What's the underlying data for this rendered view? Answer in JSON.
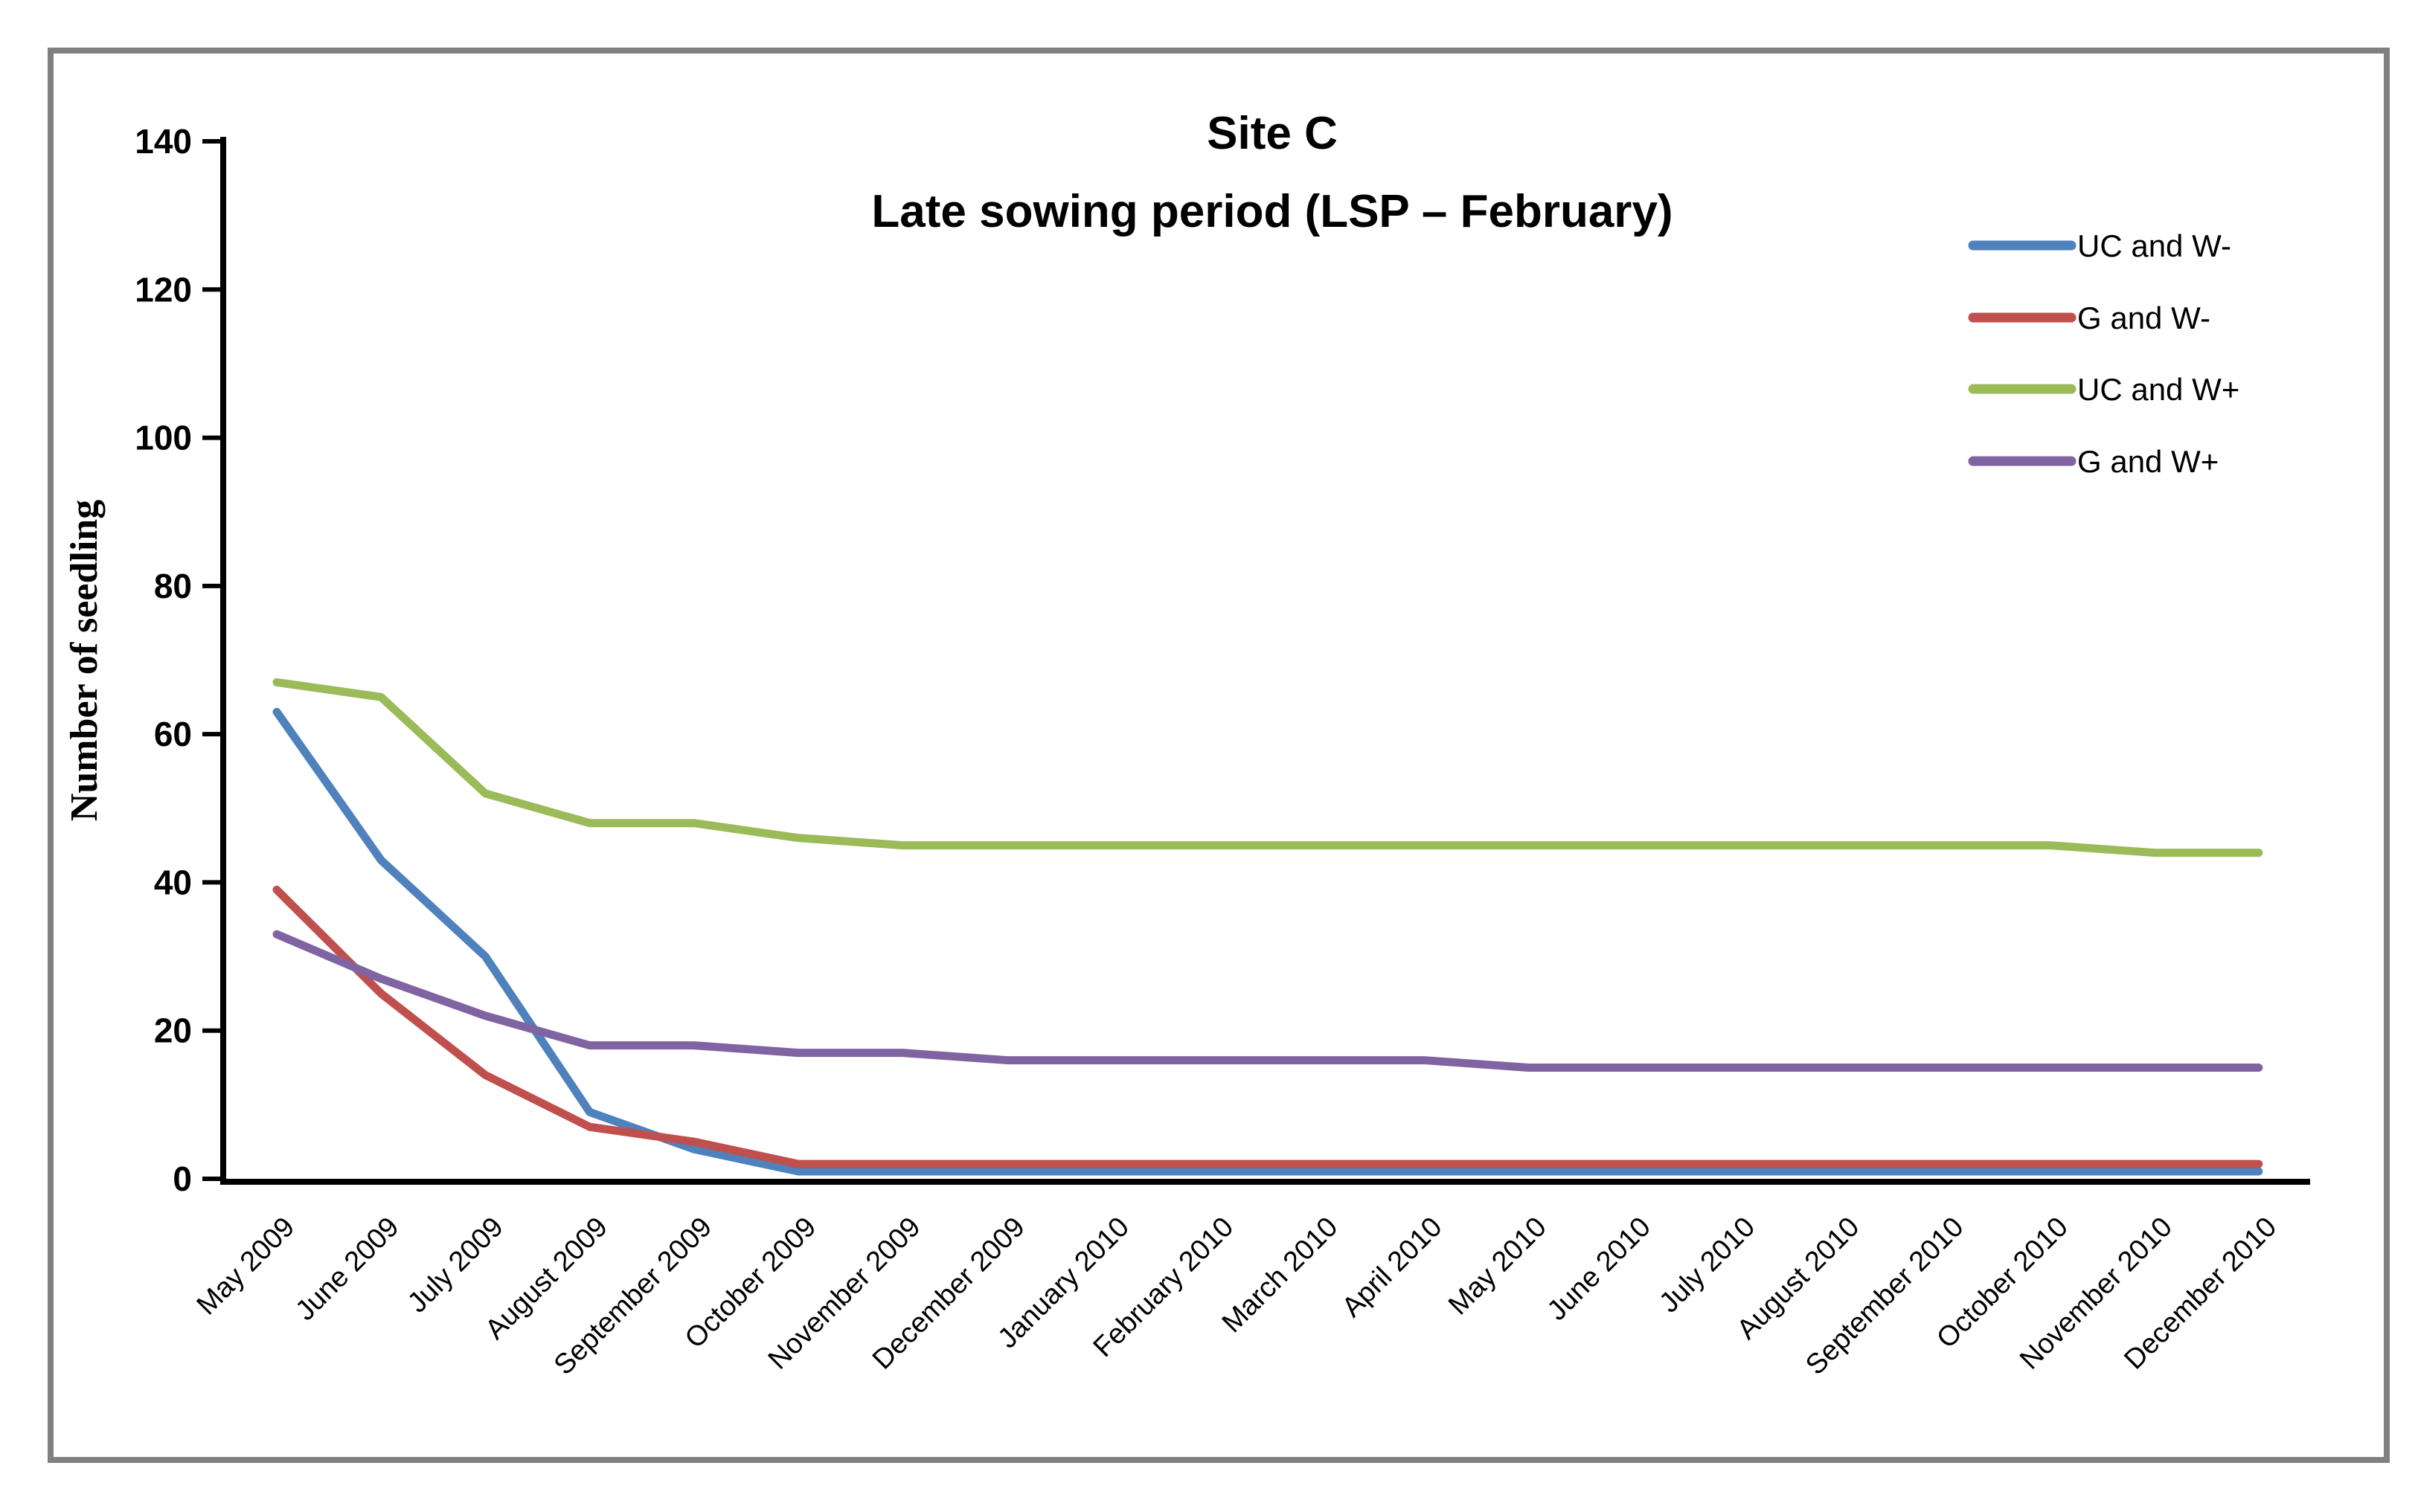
{
  "styles": {
    "background": "#FFFFFF",
    "outer_border_color": "#808080",
    "axis_color": "#000000",
    "text_color": "#000000"
  },
  "chart_data": {
    "type": "line",
    "title": "Site C",
    "subtitle": "Late sowing period (LSP – February)",
    "xlabel": "",
    "ylabel": "Number of seedling",
    "ylim": [
      0,
      140
    ],
    "ytick_interval": 20,
    "yticks": [
      0,
      20,
      40,
      60,
      80,
      100,
      120,
      140
    ],
    "grid": false,
    "legend_position": "upper-right",
    "categories": [
      "May 2009",
      "June 2009",
      "July 2009",
      "August 2009",
      "September 2009",
      "October 2009",
      "November 2009",
      "December 2009",
      "January 2010",
      "February 2010",
      "March 2010",
      "April 2010",
      "May 2010",
      "June 2010",
      "July 2010",
      "August 2010",
      "September 2010",
      "October 2010",
      "November 2010",
      "December 2010"
    ],
    "series": [
      {
        "name": "UC and W-",
        "color": "#4F81BD",
        "values": [
          63,
          43,
          30,
          9,
          4,
          1,
          1,
          1,
          1,
          1,
          1,
          1,
          1,
          1,
          1,
          1,
          1,
          1,
          1,
          1
        ]
      },
      {
        "name": "G and W-",
        "color": "#C0504D",
        "values": [
          39,
          25,
          14,
          7,
          5,
          2,
          2,
          2,
          2,
          2,
          2,
          2,
          2,
          2,
          2,
          2,
          2,
          2,
          2,
          2
        ]
      },
      {
        "name": "UC and W+",
        "color": "#9BBB59",
        "values": [
          67,
          65,
          52,
          48,
          48,
          46,
          45,
          45,
          45,
          45,
          45,
          45,
          45,
          45,
          45,
          45,
          45,
          45,
          44,
          44
        ]
      },
      {
        "name": "G and W+",
        "color": "#8064A2",
        "values": [
          33,
          27,
          22,
          18,
          18,
          17,
          17,
          16,
          16,
          16,
          16,
          16,
          15,
          15,
          15,
          15,
          15,
          15,
          15,
          15
        ]
      }
    ]
  }
}
